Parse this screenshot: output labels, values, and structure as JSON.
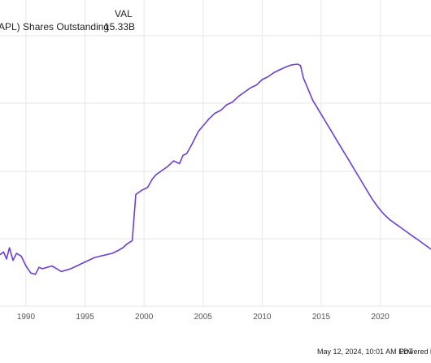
{
  "legend": {
    "val_header": "VAL",
    "series_label": "APL) Shares Outstanding",
    "series_value": "15.33B"
  },
  "footer": {
    "timestamp": "May 12, 2024, 10:01 AM EDT",
    "powered_by": "Powered by"
  },
  "colors": {
    "line": "#6b3fd6",
    "grid": "#e6e6e6",
    "axis_text": "#555555",
    "text": "#222222"
  },
  "chart_data": {
    "type": "line",
    "title": "",
    "xlabel": "",
    "ylabel": "",
    "grid": true,
    "x_ticks": [
      "1990",
      "1995",
      "2000",
      "2005",
      "2010",
      "2015",
      "2020"
    ],
    "xlim": [
      1987.8,
      2024.3
    ],
    "ylim": [
      12.0,
      28.4
    ],
    "series": [
      {
        "name": "APL) Shares Outstanding",
        "x": [
          1987.8,
          1988.1,
          1988.35,
          1988.6,
          1988.9,
          1989.2,
          1989.6,
          1990.0,
          1990.4,
          1990.8,
          1991.1,
          1991.4,
          1991.8,
          1992.2,
          1992.6,
          1993.0,
          1993.4,
          1993.8,
          1994.3,
          1994.8,
          1995.3,
          1995.8,
          1996.3,
          1996.8,
          1997.3,
          1997.8,
          1998.2,
          1998.6,
          1999.0,
          1999.3,
          1999.8,
          2000.3,
          2000.7,
          2001.0,
          2001.5,
          2002.0,
          2002.5,
          2003.0,
          2003.3,
          2003.6,
          2004.0,
          2004.3,
          2004.6,
          2005.0,
          2005.5,
          2006.0,
          2006.5,
          2007.0,
          2007.5,
          2008.0,
          2008.5,
          2009.0,
          2009.5,
          2010.0,
          2010.5,
          2011.0,
          2011.5,
          2012.0,
          2012.5,
          2013.0,
          2013.25,
          2013.5,
          2013.9,
          2014.3,
          2014.8,
          2015.3,
          2015.8,
          2016.3,
          2016.8,
          2017.3,
          2017.8,
          2018.3,
          2018.8,
          2019.3,
          2019.8,
          2020.3,
          2020.8,
          2021.3,
          2021.8,
          2022.3,
          2022.8,
          2023.3,
          2023.8,
          2024.3
        ],
        "y": [
          14.8,
          15.0,
          14.5,
          15.3,
          14.4,
          14.9,
          14.7,
          14.0,
          13.5,
          13.4,
          13.9,
          13.8,
          13.9,
          14.0,
          13.8,
          13.6,
          13.7,
          13.8,
          14.0,
          14.2,
          14.4,
          14.6,
          14.7,
          14.8,
          14.9,
          15.1,
          15.3,
          15.6,
          15.8,
          19.1,
          19.4,
          19.6,
          20.2,
          20.5,
          20.8,
          21.1,
          21.5,
          21.3,
          21.9,
          22.0,
          22.6,
          23.1,
          23.6,
          24.0,
          24.5,
          24.9,
          25.1,
          25.5,
          25.7,
          26.1,
          26.4,
          26.7,
          26.9,
          27.3,
          27.5,
          27.8,
          28.0,
          28.2,
          28.35,
          28.4,
          28.3,
          27.4,
          26.6,
          25.8,
          25.1,
          24.4,
          23.7,
          23.0,
          22.3,
          21.6,
          20.9,
          20.2,
          19.5,
          18.8,
          18.2,
          17.7,
          17.3,
          17.0,
          16.7,
          16.4,
          16.1,
          15.8,
          15.5,
          15.2
        ]
      }
    ]
  }
}
